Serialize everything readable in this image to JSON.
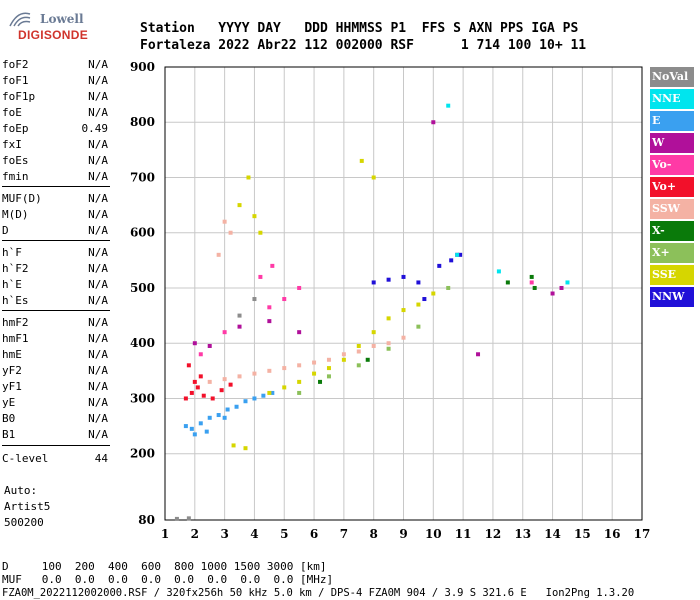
{
  "logo": {
    "line1": "Lowell",
    "line2": "DIGISONDE"
  },
  "header": {
    "line1": "Station   YYYY DAY   DDD HHMMSS P1  FFS S AXN PPS IGA PS",
    "line2": "Fortaleza 2022 Abr22 112 002000 RSF      1 714 100 10+ 11"
  },
  "params": [
    {
      "name": "foF2",
      "value": "N/A"
    },
    {
      "name": "foF1",
      "value": "N/A"
    },
    {
      "name": "foF1p",
      "value": "N/A"
    },
    {
      "name": "foE",
      "value": "N/A"
    },
    {
      "name": "foEp",
      "value": "0.49"
    },
    {
      "name": "fxI",
      "value": "N/A"
    },
    {
      "name": "foEs",
      "value": "N/A"
    },
    {
      "name": "fmin",
      "value": "N/A"
    },
    {
      "name": "MUF(D)",
      "value": "N/A"
    },
    {
      "name": "M(D)",
      "value": "N/A"
    },
    {
      "name": "D",
      "value": "N/A"
    },
    {
      "name": "h`F",
      "value": "N/A"
    },
    {
      "name": "h`F2",
      "value": "N/A"
    },
    {
      "name": "h`E",
      "value": "N/A"
    },
    {
      "name": "h`Es",
      "value": "N/A"
    },
    {
      "name": "hmF2",
      "value": "N/A"
    },
    {
      "name": "hmF1",
      "value": "N/A"
    },
    {
      "name": "hmE",
      "value": "N/A"
    },
    {
      "name": "yF2",
      "value": "N/A"
    },
    {
      "name": "yF1",
      "value": "N/A"
    },
    {
      "name": "yE",
      "value": "N/A"
    },
    {
      "name": "B0",
      "value": "N/A"
    },
    {
      "name": "B1",
      "value": "N/A"
    },
    {
      "name": "C-level",
      "value": "44"
    }
  ],
  "auto": {
    "line1": "Auto:",
    "line2": "Artist5",
    "line3": "500200"
  },
  "legend": [
    {
      "label": "NoVal",
      "color": "#8c8c8c"
    },
    {
      "label": "NNE",
      "color": "#00e5ee"
    },
    {
      "label": "E",
      "color": "#3aa0f0"
    },
    {
      "label": "W",
      "color": "#b0109a"
    },
    {
      "label": "Vo-",
      "color": "#ff3aa6"
    },
    {
      "label": "Vo+",
      "color": "#f2102a"
    },
    {
      "label": "SSW",
      "color": "#f4b2a4"
    },
    {
      "label": "X-",
      "color": "#0a7a0a"
    },
    {
      "label": "X+",
      "color": "#8cc05a"
    },
    {
      "label": "SSE",
      "color": "#d6d600"
    },
    {
      "label": "NNW",
      "color": "#2010d8"
    }
  ],
  "bottom": {
    "line1": "D     100  200  400  600  800 1000 1500 3000 [km]",
    "line2": "MUF   0.0  0.0  0.0  0.0  0.0  0.0  0.0  0.0 [MHz]"
  },
  "footer": "FZA0M_2022112002000.RSF / 320fx256h 50 kHz 5.0 km / DPS-4 FZA0M 904 / 3.9 S 321.6 E   Ion2Png 1.3.20",
  "chart_data": {
    "type": "scatter",
    "title": "",
    "xlabel": "",
    "ylabel": "",
    "xlim": [
      1,
      17
    ],
    "ylim": [
      80,
      900
    ],
    "x_ticks": [
      1,
      2,
      3,
      4,
      5,
      6,
      7,
      8,
      9,
      10,
      11,
      12,
      13,
      14,
      15,
      16,
      17
    ],
    "y_ticks": [
      80,
      200,
      300,
      400,
      500,
      600,
      700,
      800,
      900
    ],
    "grid": true,
    "legend_position": "right",
    "series": [
      {
        "name": "E",
        "color": "#3aa0f0",
        "points": [
          [
            1.7,
            250
          ],
          [
            1.9,
            245
          ],
          [
            2.2,
            255
          ],
          [
            2.5,
            265
          ],
          [
            2.8,
            270
          ],
          [
            3.1,
            280
          ],
          [
            3.4,
            285
          ],
          [
            3.7,
            295
          ],
          [
            4.0,
            300
          ],
          [
            4.3,
            305
          ],
          [
            4.6,
            310
          ],
          [
            2.0,
            235
          ],
          [
            2.4,
            240
          ],
          [
            3.0,
            265
          ]
        ]
      },
      {
        "name": "Vo+",
        "color": "#f2102a",
        "points": [
          [
            1.7,
            300
          ],
          [
            1.9,
            310
          ],
          [
            2.1,
            320
          ],
          [
            2.3,
            305
          ],
          [
            2.6,
            300
          ],
          [
            2.9,
            315
          ],
          [
            2.2,
            340
          ],
          [
            1.8,
            360
          ],
          [
            3.2,
            325
          ],
          [
            2.0,
            330
          ]
        ]
      },
      {
        "name": "SSW",
        "color": "#f4b2a4",
        "points": [
          [
            2.5,
            330
          ],
          [
            3.0,
            335
          ],
          [
            3.5,
            340
          ],
          [
            4.0,
            345
          ],
          [
            4.5,
            350
          ],
          [
            5.0,
            355
          ],
          [
            5.5,
            360
          ],
          [
            6.0,
            365
          ],
          [
            6.5,
            370
          ],
          [
            7.0,
            380
          ],
          [
            7.5,
            385
          ],
          [
            8.0,
            395
          ],
          [
            8.5,
            400
          ],
          [
            9.0,
            410
          ],
          [
            3.0,
            620
          ],
          [
            3.2,
            600
          ],
          [
            2.8,
            560
          ]
        ]
      },
      {
        "name": "SSE",
        "color": "#d6d600",
        "points": [
          [
            4.5,
            310
          ],
          [
            5.0,
            320
          ],
          [
            5.5,
            330
          ],
          [
            6.0,
            345
          ],
          [
            6.5,
            355
          ],
          [
            7.0,
            370
          ],
          [
            7.5,
            395
          ],
          [
            8.0,
            420
          ],
          [
            8.5,
            445
          ],
          [
            9.0,
            460
          ],
          [
            9.5,
            470
          ],
          [
            10.0,
            490
          ],
          [
            3.5,
            650
          ],
          [
            4.0,
            630
          ],
          [
            3.8,
            700
          ],
          [
            4.2,
            600
          ],
          [
            7.6,
            730
          ],
          [
            8.0,
            700
          ],
          [
            3.3,
            215
          ],
          [
            3.7,
            210
          ]
        ]
      },
      {
        "name": "NNW",
        "color": "#2010d8",
        "points": [
          [
            8.0,
            510
          ],
          [
            8.5,
            515
          ],
          [
            9.0,
            520
          ],
          [
            9.5,
            510
          ],
          [
            10.2,
            540
          ],
          [
            10.6,
            550
          ],
          [
            10.9,
            560
          ],
          [
            9.7,
            480
          ]
        ]
      },
      {
        "name": "W",
        "color": "#b0109a",
        "points": [
          [
            2.0,
            400
          ],
          [
            2.5,
            395
          ],
          [
            3.5,
            430
          ],
          [
            4.5,
            440
          ],
          [
            5.5,
            420
          ],
          [
            10.0,
            800
          ],
          [
            10.8,
            560
          ],
          [
            11.5,
            380
          ],
          [
            14.0,
            490
          ],
          [
            14.3,
            500
          ]
        ]
      },
      {
        "name": "X+",
        "color": "#8cc05a",
        "points": [
          [
            5.5,
            310
          ],
          [
            6.5,
            340
          ],
          [
            7.5,
            360
          ],
          [
            8.5,
            390
          ],
          [
            9.5,
            430
          ],
          [
            10.5,
            500
          ]
        ]
      },
      {
        "name": "X-",
        "color": "#0a7a0a",
        "points": [
          [
            6.2,
            330
          ],
          [
            7.8,
            370
          ],
          [
            12.5,
            510
          ],
          [
            13.3,
            520
          ],
          [
            13.4,
            500
          ]
        ]
      },
      {
        "name": "NNE",
        "color": "#00e5ee",
        "points": [
          [
            10.5,
            830
          ],
          [
            10.8,
            560
          ],
          [
            12.2,
            530
          ],
          [
            14.5,
            510
          ]
        ]
      },
      {
        "name": "NoVal",
        "color": "#8c8c8c",
        "points": [
          [
            1.4,
            82
          ],
          [
            1.8,
            83
          ],
          [
            3.5,
            450
          ],
          [
            4.0,
            480
          ]
        ]
      },
      {
        "name": "Vo-",
        "color": "#ff3aa6",
        "points": [
          [
            2.2,
            380
          ],
          [
            3.0,
            420
          ],
          [
            4.5,
            465
          ],
          [
            5.0,
            480
          ],
          [
            5.5,
            500
          ],
          [
            4.6,
            540
          ],
          [
            4.2,
            520
          ],
          [
            13.3,
            510
          ]
        ]
      }
    ]
  }
}
